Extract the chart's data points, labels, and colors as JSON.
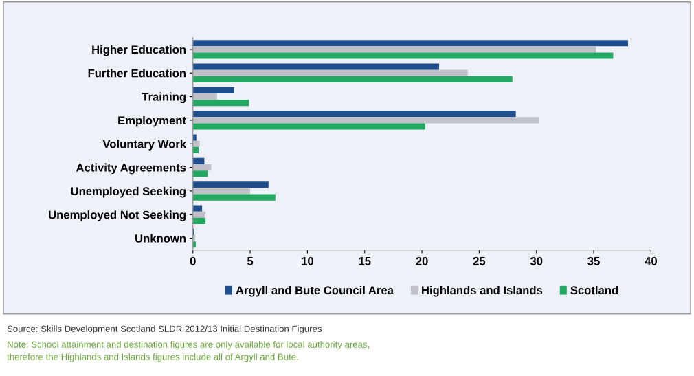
{
  "chart_data": {
    "type": "bar",
    "orientation": "horizontal",
    "categories": [
      "Higher Education",
      "Further Education",
      "Training",
      "Employment",
      "Voluntary Work",
      "Activity Agreements",
      "Unemployed Seeking",
      "Unemployed Not Seeking",
      "Unknown"
    ],
    "series": [
      {
        "name": "Argyll and Bute Council Area",
        "color": "#1f4e8c",
        "values": [
          38.0,
          21.5,
          3.6,
          28.2,
          0.3,
          1.0,
          6.6,
          0.8,
          0.1
        ]
      },
      {
        "name": "Highlands and Islands",
        "color": "#c0c0c8",
        "values": [
          35.2,
          24.0,
          2.1,
          30.2,
          0.6,
          1.6,
          5.0,
          1.1,
          0.2
        ]
      },
      {
        "name": "Scotland",
        "color": "#22a860",
        "values": [
          36.7,
          27.9,
          4.9,
          20.3,
          0.5,
          1.3,
          7.2,
          1.1,
          0.25
        ]
      }
    ],
    "xlim": [
      0,
      40
    ],
    "xticks": [
      0,
      5,
      10,
      15,
      20,
      25,
      30,
      35,
      40
    ],
    "grid": false,
    "legend": "bottom",
    "annotations": [
      "Source: Skills Development Scotland SLDR 2012/13 Initial Destination Figures",
      "Note: School attainment and destination figures are only available for local authority areas,\ntherefore the Highlands and Islands figures include all of Argyll and Bute."
    ]
  }
}
